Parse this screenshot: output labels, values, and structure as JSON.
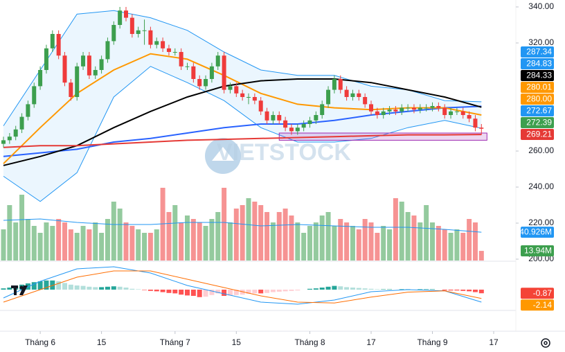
{
  "chart_data": {
    "type": "candlestick",
    "watermark": "VIETSTOCK",
    "up_color": "#3d9f4e",
    "down_color": "#ef3b3b",
    "open": [
      264,
      266,
      268,
      272,
      279,
      286,
      296,
      305,
      317,
      325,
      313,
      298,
      290,
      307,
      313,
      302,
      305,
      311,
      321,
      330,
      338,
      334,
      325,
      327,
      327,
      319,
      321,
      317,
      315,
      315,
      307,
      307,
      300,
      296,
      300,
      307,
      313,
      294,
      296,
      292,
      290,
      290,
      288,
      282,
      277,
      280,
      277,
      273,
      271,
      273,
      275,
      277,
      280,
      286,
      294,
      300,
      294,
      290,
      292,
      290,
      286,
      282,
      280,
      282,
      283,
      282,
      284,
      284,
      283,
      284,
      284,
      285,
      284,
      280,
      282,
      282,
      280,
      278,
      273
    ],
    "high": [
      268,
      270,
      274,
      281,
      288,
      298,
      307,
      319,
      327,
      327,
      315,
      300,
      309,
      315,
      315,
      307,
      313,
      323,
      332,
      340,
      340,
      336,
      329,
      333,
      329,
      323,
      323,
      319,
      317,
      317,
      309,
      309,
      302,
      302,
      309,
      315,
      315,
      298,
      298,
      294,
      292,
      292,
      290,
      284,
      282,
      282,
      279,
      275,
      275,
      277,
      279,
      282,
      288,
      296,
      302,
      302,
      296,
      294,
      294,
      292,
      288,
      284,
      284,
      285,
      285,
      286,
      286,
      286,
      286,
      286,
      287,
      287,
      286,
      284,
      284,
      284,
      282,
      280,
      275
    ],
    "low": [
      262,
      264,
      266,
      270,
      277,
      284,
      294,
      303,
      315,
      311,
      296,
      288,
      288,
      305,
      300,
      300,
      303,
      309,
      319,
      328,
      332,
      323,
      323,
      319,
      317,
      317,
      315,
      313,
      313,
      305,
      305,
      298,
      294,
      294,
      298,
      305,
      292,
      292,
      290,
      288,
      286,
      286,
      280,
      275,
      275,
      275,
      271,
      269,
      269,
      271,
      273,
      275,
      278,
      284,
      292,
      292,
      288,
      288,
      288,
      284,
      280,
      278,
      278,
      280,
      280,
      280,
      282,
      281,
      281,
      282,
      282,
      282,
      278,
      278,
      280,
      278,
      276,
      271,
      269
    ],
    "close": [
      266,
      268,
      272,
      279,
      286,
      296,
      305,
      317,
      325,
      313,
      298,
      290,
      307,
      313,
      302,
      305,
      311,
      321,
      330,
      338,
      334,
      325,
      327,
      327,
      319,
      321,
      317,
      315,
      315,
      307,
      307,
      300,
      296,
      300,
      307,
      313,
      294,
      296,
      292,
      290,
      290,
      288,
      282,
      277,
      280,
      277,
      273,
      271,
      273,
      275,
      277,
      280,
      286,
      294,
      300,
      294,
      290,
      292,
      290,
      286,
      282,
      280,
      282,
      283,
      282,
      284,
      284,
      283,
      284,
      284,
      285,
      284,
      280,
      282,
      282,
      280,
      278,
      273,
      272.39
    ],
    "ylim": [
      200,
      340
    ],
    "yticks": [
      {
        "value": 200,
        "label": "200.00"
      },
      {
        "value": 220,
        "label": "220.00"
      },
      {
        "value": 240,
        "label": "240.00"
      },
      {
        "value": 260,
        "label": "260.00"
      },
      {
        "value": 320,
        "label": "320.00"
      },
      {
        "value": 340,
        "label": "340.00"
      }
    ],
    "xticks": [
      {
        "value": 6,
        "label": "Tháng 6"
      },
      {
        "value": 16,
        "label": "15"
      },
      {
        "value": 28,
        "label": "Tháng 7"
      },
      {
        "value": 38,
        "label": "15"
      },
      {
        "value": 50,
        "label": "Tháng 8"
      },
      {
        "value": 60,
        "label": "17"
      },
      {
        "value": 70,
        "label": "Tháng 9"
      },
      {
        "value": 80,
        "label": "17"
      }
    ],
    "line_x": [
      0,
      6,
      12,
      18,
      24,
      30,
      36,
      42,
      48,
      54,
      60,
      66,
      72,
      78
    ],
    "band": {
      "color": "#2196f3",
      "fill": "rgba(33,150,243,0.09)",
      "upper": [
        274,
        305,
        336,
        338,
        334,
        327,
        315,
        305,
        302,
        302,
        296,
        294,
        288,
        287.34
      ],
      "lower": [
        246,
        232,
        248,
        290,
        307,
        298,
        288,
        273,
        265,
        265,
        267,
        273,
        277,
        272.67
      ]
    },
    "lines": [
      {
        "color": "#2962ff",
        "values": [
          257,
          259,
          261,
          265,
          267,
          270,
          273,
          275,
          275,
          277,
          280,
          282,
          284,
          284.83
        ]
      },
      {
        "color": "#ff9800",
        "values": [
          253,
          273,
          292,
          305,
          314,
          311,
          302,
          292,
          286,
          284,
          283,
          284,
          284,
          280.01
        ]
      },
      {
        "color": "#000000",
        "values": [
          252,
          257,
          263,
          273,
          282,
          290,
          296,
          299,
          300,
          300,
          298,
          294,
          290,
          284.33
        ]
      },
      {
        "color": "#e53935",
        "values": [
          262,
          263,
          263,
          264,
          265,
          266,
          266.5,
          267,
          267.5,
          268,
          268.5,
          269,
          269,
          269.21
        ]
      }
    ],
    "zone": {
      "x": [
        45,
        78
      ],
      "y": [
        266,
        270
      ],
      "color": "#9c27b0"
    },
    "volume": {
      "values": [
        45,
        80,
        55,
        95,
        60,
        50,
        40,
        55,
        50,
        60,
        55,
        45,
        40,
        50,
        45,
        55,
        40,
        60,
        85,
        75,
        55,
        50,
        45,
        40,
        40,
        45,
        105,
        70,
        80,
        55,
        65,
        60,
        55,
        50,
        60,
        70,
        105,
        55,
        75,
        80,
        90,
        85,
        80,
        70,
        55,
        70,
        75,
        65,
        55,
        40,
        50,
        55,
        65,
        70,
        50,
        60,
        55,
        50,
        45,
        60,
        55,
        40,
        50,
        45,
        90,
        85,
        70,
        65,
        55,
        80,
        55,
        50,
        45,
        40,
        45,
        40,
        60,
        55,
        13.94
      ],
      "ma": [
        58,
        60,
        55,
        52,
        52,
        55,
        55,
        50,
        52,
        50,
        48,
        48,
        45,
        40.926
      ],
      "ma_color": "#2196f3"
    },
    "macd": {
      "histogram": [
        0.3,
        0.5,
        0.8,
        1.2,
        1.5,
        1.8,
        2.0,
        2.2,
        2.2,
        2.0,
        1.6,
        1.2,
        1.0,
        0.9,
        0.7,
        0.6,
        0.6,
        0.7,
        0.8,
        0.7,
        0.5,
        0.2,
        0.1,
        -0.1,
        -0.3,
        -0.4,
        -0.6,
        -0.8,
        -0.9,
        -1.2,
        -1.4,
        -1.5,
        -1.8,
        -1.7,
        -1.3,
        -0.9,
        -1.5,
        -1.4,
        -1.3,
        -1.2,
        -1.0,
        -0.9,
        -0.9,
        -0.8,
        -0.6,
        -0.5,
        -0.4,
        -0.3,
        -0.2,
        0.0,
        0.2,
        0.3,
        0.5,
        0.7,
        0.9,
        0.8,
        0.6,
        0.5,
        0.4,
        0.3,
        0.2,
        0.1,
        0.1,
        0.1,
        0.0,
        0.1,
        0.1,
        0.0,
        0.1,
        0.1,
        0.1,
        0.0,
        -0.2,
        -0.2,
        -0.2,
        -0.3,
        -0.4,
        -0.6,
        -0.87
      ],
      "macd": [
        -2,
        2,
        5,
        5.5,
        4,
        1,
        -1,
        -3,
        -3.5,
        -2.5,
        -0.5,
        0,
        -0.3,
        -3.0
      ],
      "signal": [
        -3,
        0,
        3,
        4.5,
        4.5,
        2.5,
        0.5,
        -1.5,
        -3,
        -3.2,
        -1.8,
        -0.6,
        -0.3,
        -2.14
      ],
      "macd_color": "#2196f3",
      "signal_color": "#ff6d00"
    },
    "badges": [
      {
        "pane": "price",
        "value": 287.34,
        "color": "#2196f3"
      },
      {
        "pane": "price",
        "value": 284.83,
        "color": "#2196f3"
      },
      {
        "pane": "price",
        "value": 284.33,
        "color": "#000000"
      },
      {
        "pane": "price",
        "value": 280.01,
        "color": "#ff9800"
      },
      {
        "pane": "price",
        "value": 280,
        "label": "280.00",
        "color": "#ff9800"
      },
      {
        "pane": "price",
        "value": 272.67,
        "color": "#2196f3"
      },
      {
        "pane": "price",
        "value": 272.39,
        "color": "#3d9f4e"
      },
      {
        "pane": "price",
        "value": 269.21,
        "color": "#e53935"
      },
      {
        "pane": "volume",
        "value": 40.926,
        "label": "40.926M",
        "color": "#2196f3"
      },
      {
        "pane": "volume",
        "value": 13.94,
        "label": "13.94M",
        "color": "#3d9f4e"
      },
      {
        "pane": "macd",
        "value": -0.87,
        "color": "#f44336"
      },
      {
        "pane": "macd",
        "value": -2.14,
        "color": "#ff9800"
      }
    ]
  }
}
